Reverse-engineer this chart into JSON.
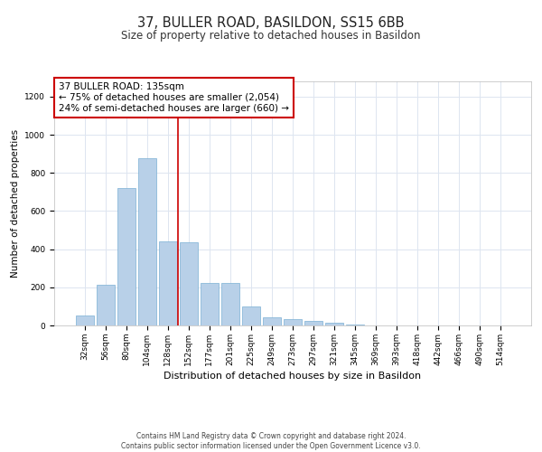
{
  "title_line1": "37, BULLER ROAD, BASILDON, SS15 6BB",
  "title_line2": "Size of property relative to detached houses in Basildon",
  "xlabel": "Distribution of detached houses by size in Basildon",
  "ylabel": "Number of detached properties",
  "footer": "Contains HM Land Registry data © Crown copyright and database right 2024.\nContains public sector information licensed under the Open Government Licence v3.0.",
  "categories": [
    "32sqm",
    "56sqm",
    "80sqm",
    "104sqm",
    "128sqm",
    "152sqm",
    "177sqm",
    "201sqm",
    "225sqm",
    "249sqm",
    "273sqm",
    "297sqm",
    "321sqm",
    "345sqm",
    "369sqm",
    "393sqm",
    "418sqm",
    "442sqm",
    "466sqm",
    "490sqm",
    "514sqm"
  ],
  "values": [
    50,
    215,
    720,
    875,
    440,
    435,
    225,
    225,
    100,
    45,
    35,
    25,
    15,
    5,
    2,
    1,
    0,
    0,
    0,
    0,
    0
  ],
  "bar_color": "#b8d0e8",
  "bar_edge_color": "#7aafd4",
  "background_color": "#ffffff",
  "grid_color": "#dde5f0",
  "vline_color": "#cc0000",
  "annotation_box_text": "37 BULLER ROAD: 135sqm\n← 75% of detached houses are smaller (2,054)\n24% of semi-detached houses are larger (660) →",
  "ylim": [
    0,
    1280
  ],
  "yticks": [
    0,
    200,
    400,
    600,
    800,
    1000,
    1200
  ],
  "title1_fontsize": 10.5,
  "title2_fontsize": 8.5,
  "xlabel_fontsize": 8,
  "ylabel_fontsize": 7.5,
  "tick_fontsize": 6.5,
  "annotation_fontsize": 7.5,
  "footer_fontsize": 5.5
}
